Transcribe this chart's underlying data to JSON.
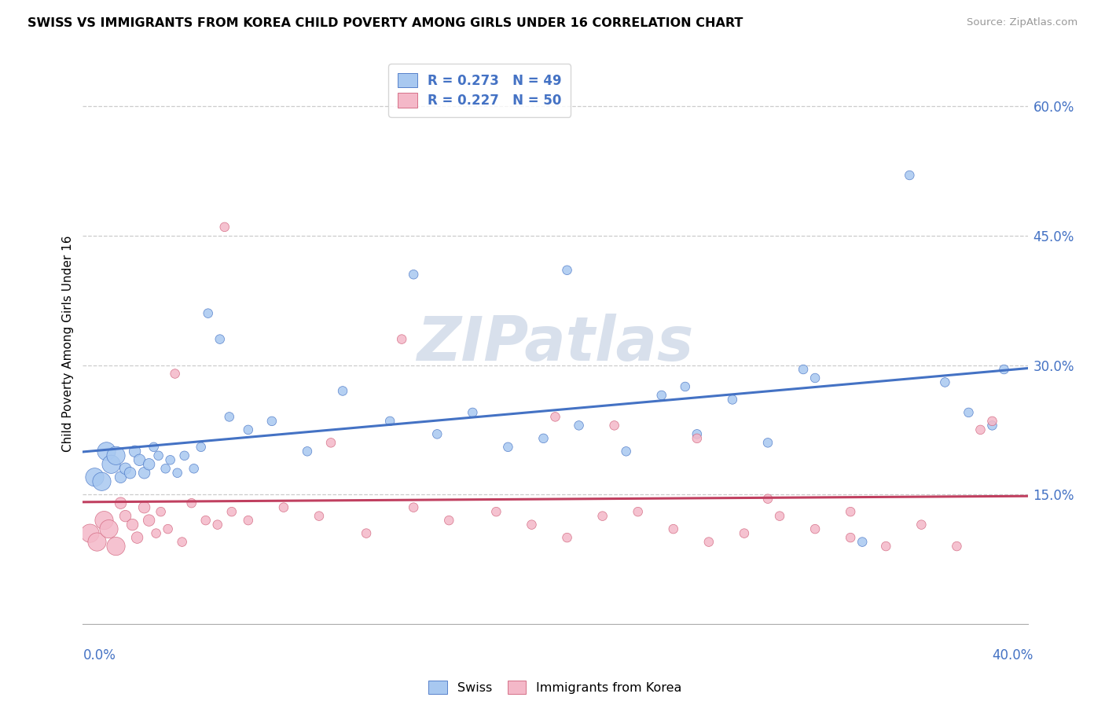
{
  "title": "SWISS VS IMMIGRANTS FROM KOREA CHILD POVERTY AMONG GIRLS UNDER 16 CORRELATION CHART",
  "source": "Source: ZipAtlas.com",
  "ylabel": "Child Poverty Among Girls Under 16",
  "yaxis_values": [
    15.0,
    30.0,
    45.0,
    60.0
  ],
  "xmin": 0.0,
  "xmax": 40.0,
  "ymin": 0.0,
  "ymax": 65.0,
  "R_swiss": 0.273,
  "N_swiss": 49,
  "R_korea": 0.227,
  "N_korea": 50,
  "swiss_face_color": "#a8c8f0",
  "swiss_edge_color": "#4472c4",
  "korea_face_color": "#f4b8c8",
  "korea_edge_color": "#d0607a",
  "swiss_line_color": "#4472c4",
  "korea_line_color": "#c04060",
  "text_color": "#4472c4",
  "grid_color": "#cccccc",
  "background_color": "#ffffff",
  "watermark_color": "#d8e0ec",
  "swiss_x": [
    0.5,
    0.8,
    1.0,
    1.2,
    1.4,
    1.6,
    1.8,
    2.0,
    2.2,
    2.4,
    2.6,
    2.8,
    3.0,
    3.2,
    3.5,
    3.7,
    4.0,
    4.3,
    4.7,
    5.0,
    5.3,
    5.8,
    6.2,
    7.0,
    8.0,
    9.5,
    11.0,
    13.0,
    15.0,
    16.5,
    18.0,
    19.5,
    21.0,
    23.0,
    24.5,
    26.0,
    27.5,
    29.0,
    31.0,
    33.0,
    35.0,
    36.5,
    37.5,
    39.0,
    14.0,
    20.5,
    25.5,
    30.5,
    38.5
  ],
  "swiss_y": [
    17.0,
    16.5,
    20.0,
    18.5,
    19.5,
    17.0,
    18.0,
    17.5,
    20.0,
    19.0,
    17.5,
    18.5,
    20.5,
    19.5,
    18.0,
    19.0,
    17.5,
    19.5,
    18.0,
    20.5,
    36.0,
    33.0,
    24.0,
    22.5,
    23.5,
    20.0,
    27.0,
    23.5,
    22.0,
    24.5,
    20.5,
    21.5,
    23.0,
    20.0,
    26.5,
    22.0,
    26.0,
    21.0,
    28.5,
    9.5,
    52.0,
    28.0,
    24.5,
    29.5,
    40.5,
    41.0,
    27.5,
    29.5,
    23.0
  ],
  "korea_x": [
    0.3,
    0.6,
    0.9,
    1.1,
    1.4,
    1.6,
    1.8,
    2.1,
    2.3,
    2.6,
    2.8,
    3.1,
    3.3,
    3.6,
    3.9,
    4.2,
    4.6,
    5.2,
    5.7,
    6.3,
    7.0,
    8.5,
    10.0,
    12.0,
    14.0,
    15.5,
    17.5,
    19.0,
    20.5,
    22.0,
    23.5,
    25.0,
    26.5,
    28.0,
    29.5,
    31.0,
    32.5,
    34.0,
    35.5,
    37.0,
    38.5,
    6.0,
    10.5,
    13.5,
    20.0,
    22.5,
    26.0,
    29.0,
    32.5,
    38.0
  ],
  "korea_y": [
    10.5,
    9.5,
    12.0,
    11.0,
    9.0,
    14.0,
    12.5,
    11.5,
    10.0,
    13.5,
    12.0,
    10.5,
    13.0,
    11.0,
    29.0,
    9.5,
    14.0,
    12.0,
    11.5,
    13.0,
    12.0,
    13.5,
    12.5,
    10.5,
    13.5,
    12.0,
    13.0,
    11.5,
    10.0,
    12.5,
    13.0,
    11.0,
    9.5,
    10.5,
    12.5,
    11.0,
    10.0,
    9.0,
    11.5,
    9.0,
    23.5,
    46.0,
    21.0,
    33.0,
    24.0,
    23.0,
    21.5,
    14.5,
    13.0,
    22.5
  ]
}
